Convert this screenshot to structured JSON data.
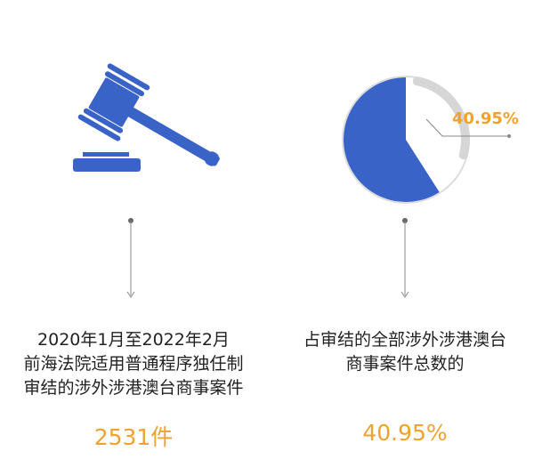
{
  "left": {
    "icon": "gavel-icon",
    "description_lines": [
      "2020年1月至2022年2月",
      "前海法院适用普通程序独任制",
      "审结的涉外涉港澳台商事案件"
    ],
    "value": "2531件"
  },
  "right": {
    "pie": {
      "highlight_percent": 40.95,
      "label": "40.95%"
    },
    "description_lines": [
      "占审结的全部涉外涉港澳台",
      "商事案件总数的"
    ],
    "value": "40.95%"
  },
  "colors": {
    "accent_blue": "#3a63c8",
    "accent_orange": "#f0a22e",
    "gray": "#d6d6d6"
  }
}
